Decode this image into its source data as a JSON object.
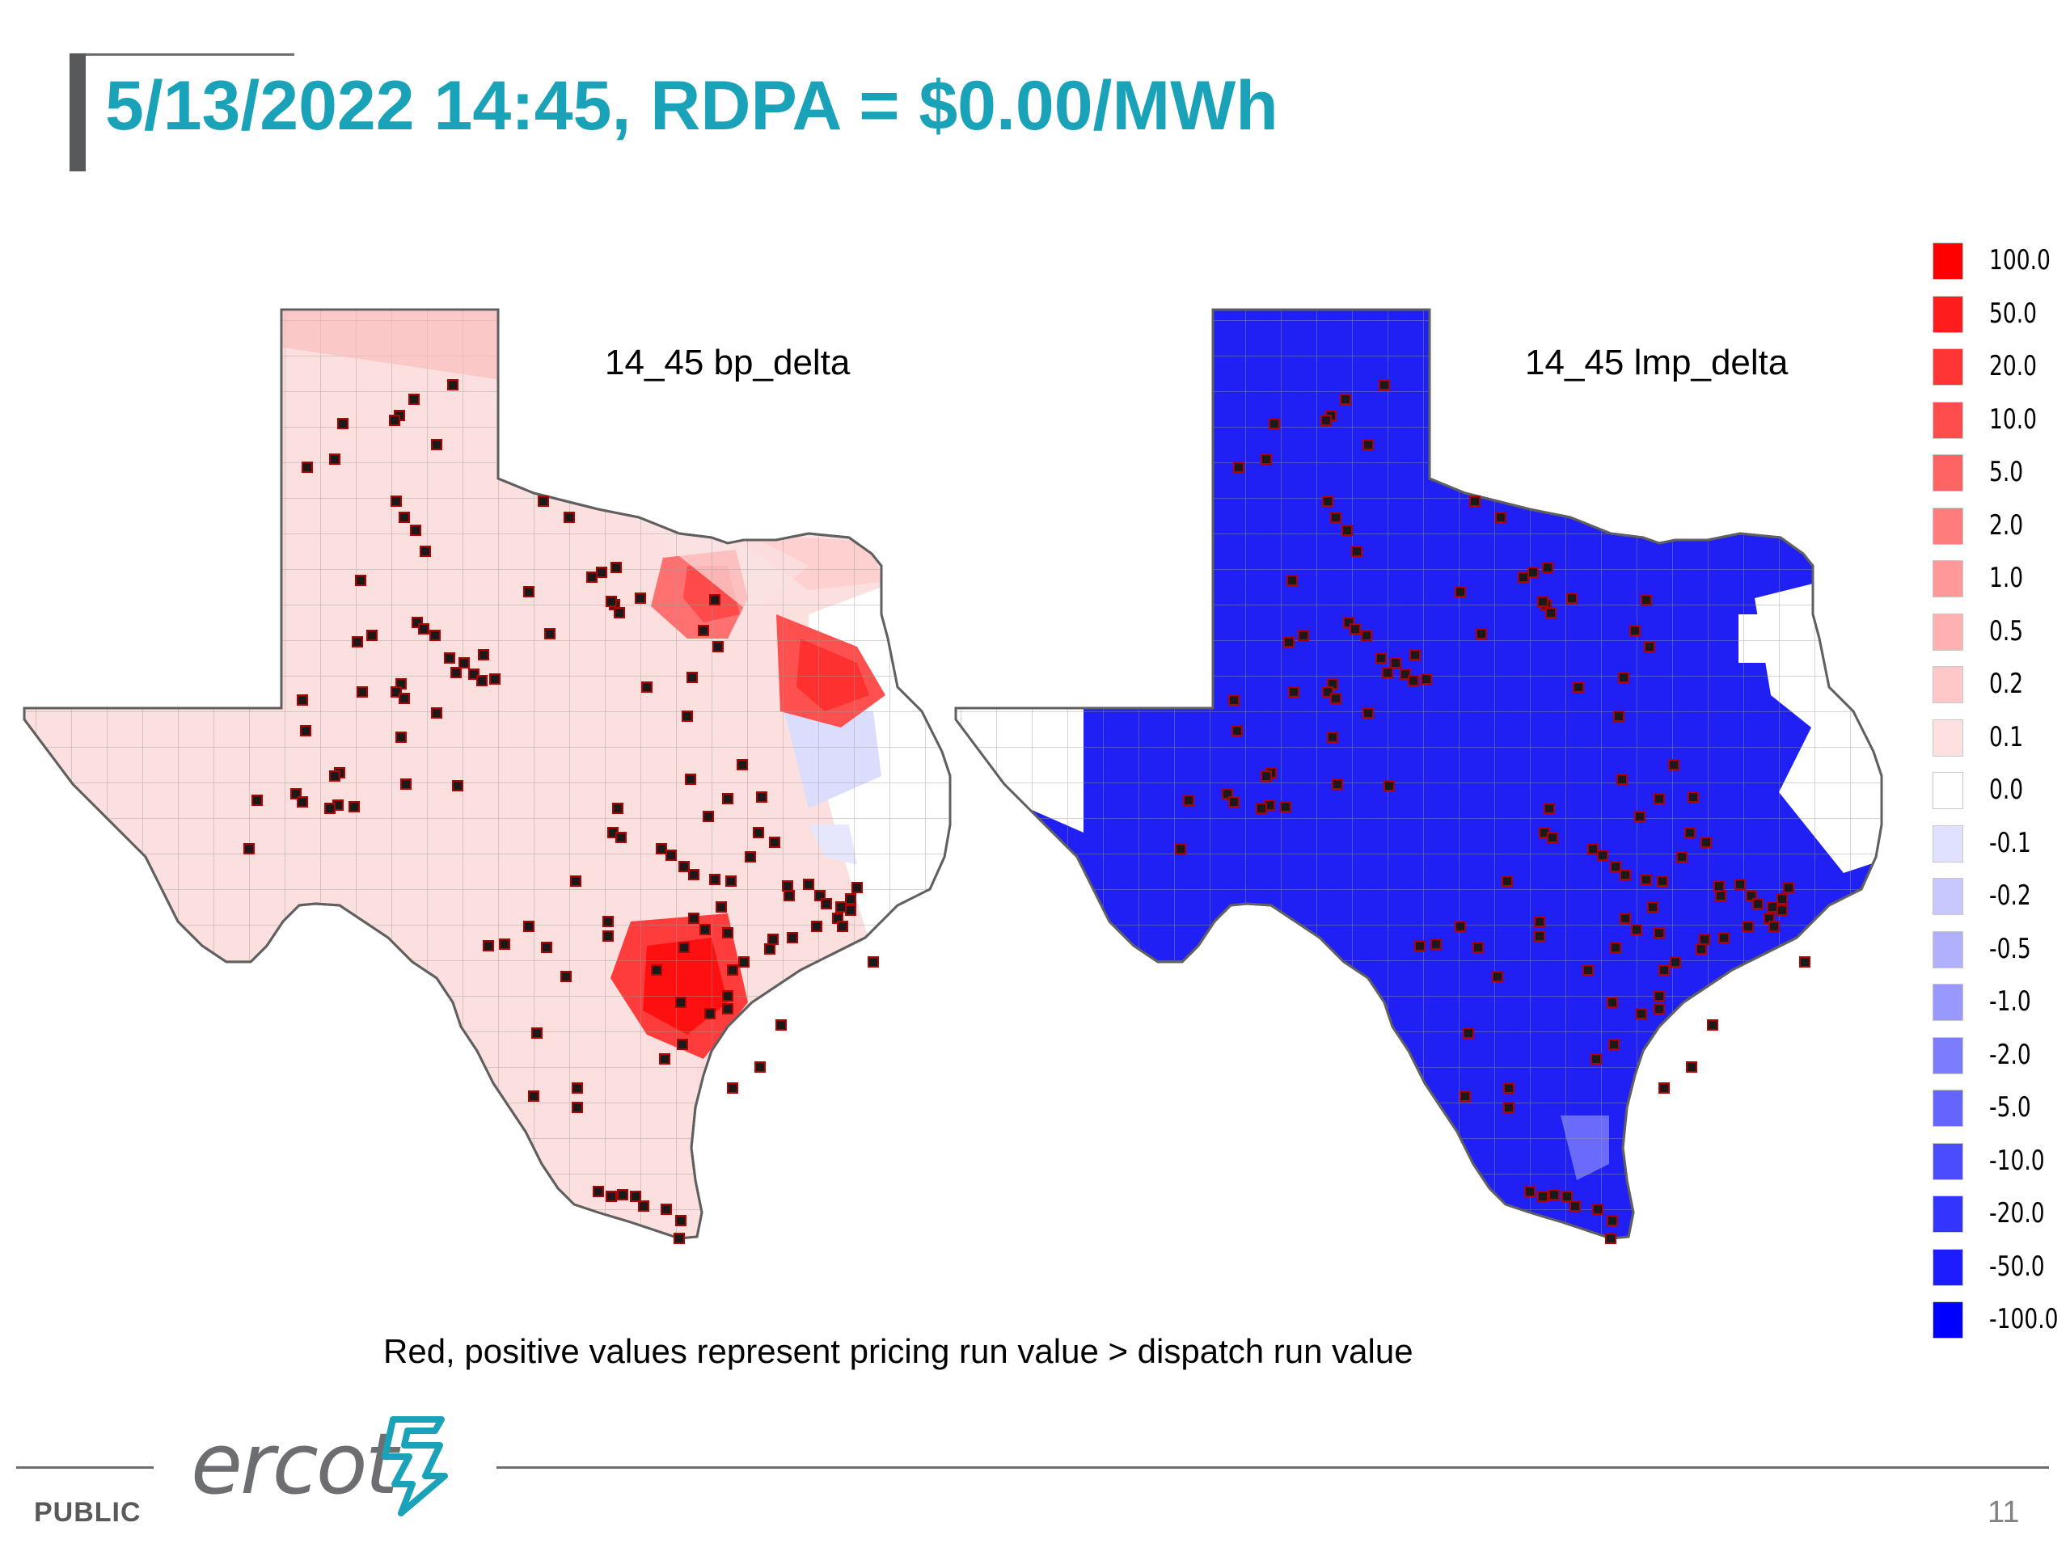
{
  "header": {
    "title": "5/13/2022 14:45, RDPA = $0.00/MWh"
  },
  "maps": [
    {
      "label": "14_45 bp_delta"
    },
    {
      "label": "14_45 lmp_delta"
    }
  ],
  "legend": {
    "items": [
      {
        "label": "100.0",
        "color": "#ff0000"
      },
      {
        "label": "50.0",
        "color": "#ff1c1c"
      },
      {
        "label": "20.0",
        "color": "#ff3434"
      },
      {
        "label": "10.0",
        "color": "#ff4c4c"
      },
      {
        "label": "5.0",
        "color": "#ff6464"
      },
      {
        "label": "2.0",
        "color": "#ff7c7c"
      },
      {
        "label": "1.0",
        "color": "#ff9898"
      },
      {
        "label": "0.5",
        "color": "#ffb0b0"
      },
      {
        "label": "0.2",
        "color": "#ffc8c8"
      },
      {
        "label": "0.1",
        "color": "#ffe0e0"
      },
      {
        "label": "0.0",
        "color": "#ffffff"
      },
      {
        "label": "-0.1",
        "color": "#e0e0ff"
      },
      {
        "label": "-0.2",
        "color": "#c8c8ff"
      },
      {
        "label": "-0.5",
        "color": "#b0b0ff"
      },
      {
        "label": "-1.0",
        "color": "#9898ff"
      },
      {
        "label": "-2.0",
        "color": "#7c7cff"
      },
      {
        "label": "-5.0",
        "color": "#6464ff"
      },
      {
        "label": "-10.0",
        "color": "#4c4cff"
      },
      {
        "label": "-20.0",
        "color": "#3434ff"
      },
      {
        "label": "-50.0",
        "color": "#1c1cff"
      },
      {
        "label": "-100.0",
        "color": "#0000ff"
      }
    ]
  },
  "footnote": "Red, positive values represent pricing run value > dispatch run value",
  "footer": {
    "logo_text": "ercot",
    "classification": "PUBLIC",
    "page_number": "11"
  }
}
